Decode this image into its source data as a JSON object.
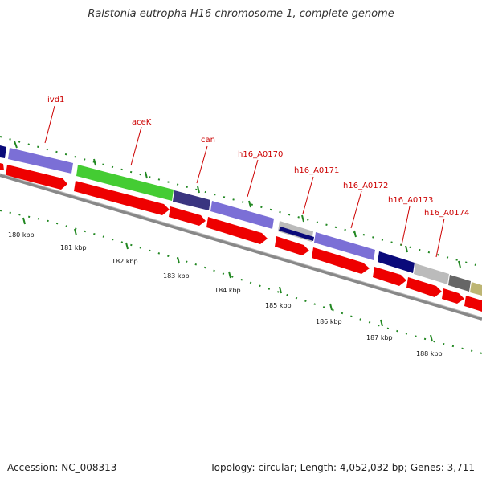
{
  "title": "Ralstonia eutropha H16 chromosome 1, complete genome",
  "footer": {
    "accession": "Accession: NC_008313",
    "summary": "Topology: circular; Length: 4,052,032 bp; Genes: 3,711"
  },
  "gene_labels": [
    "ivd1",
    "aceK",
    "can",
    "h16_A0170",
    "h16_A0171",
    "h16_A0172",
    "h16_A0173",
    "h16_A0174"
  ],
  "scale_labels": [
    "180 kbp",
    "181 kbp",
    "182 kbp",
    "183 kbp",
    "184 kbp",
    "185 kbp",
    "186 kbp",
    "187 kbp",
    "188 kbp"
  ],
  "colors": {
    "forward_cds": "#ee0000",
    "gene_label": "#cc0000",
    "tick": "#228822",
    "backbone": "#888888",
    "violet": "#7b6fd6",
    "green": "#44cc33",
    "navy": "#0a0a7a",
    "dark_slate": "#3a3580",
    "gray": "#bbbbbb",
    "dark_gray": "#666666",
    "olive": "#bdb573"
  }
}
